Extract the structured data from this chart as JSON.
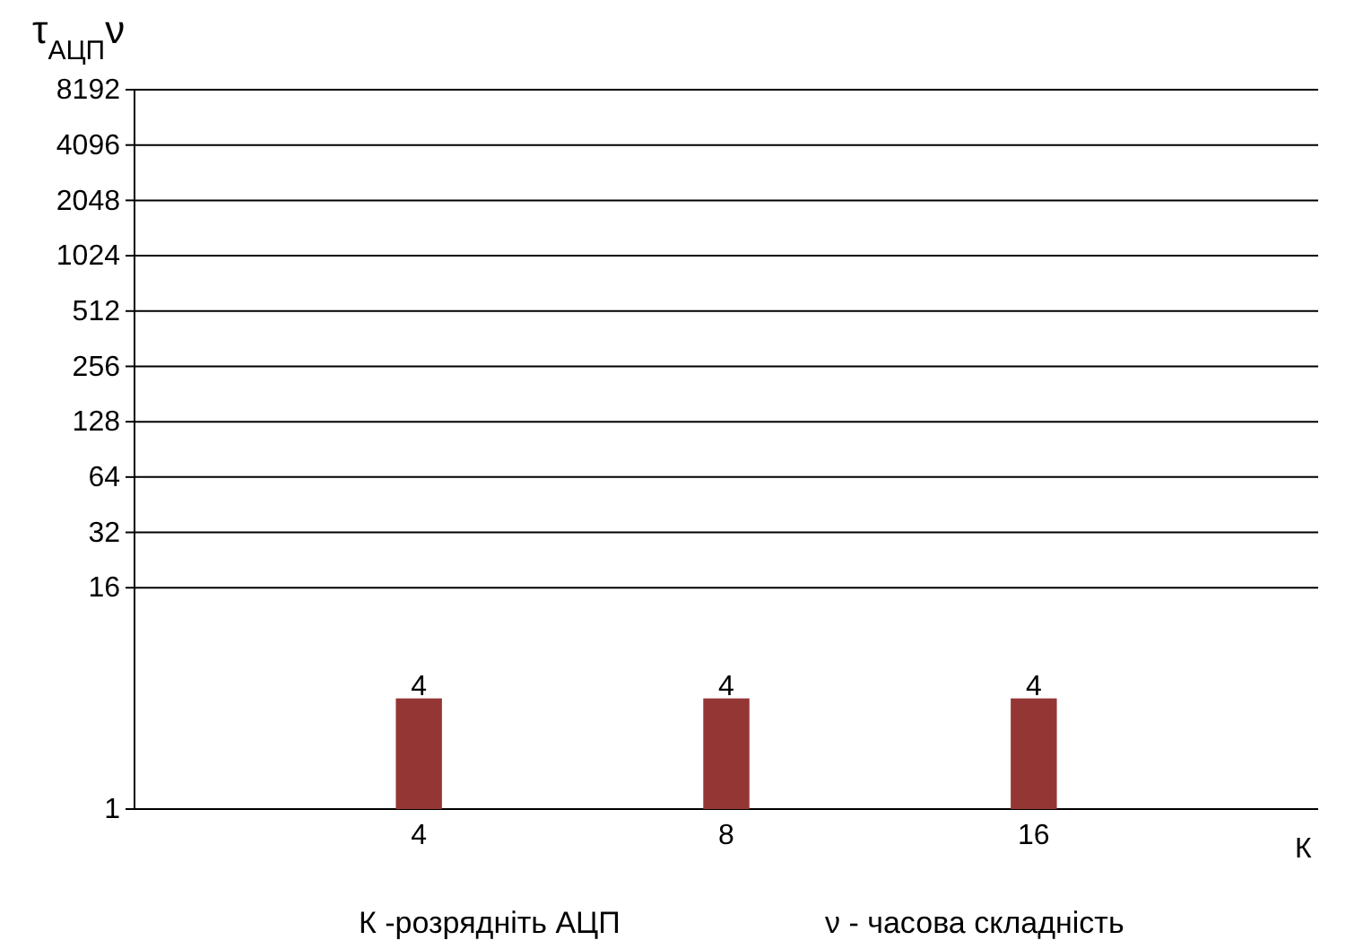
{
  "chart_data": {
    "type": "bar",
    "ylabel": "τ$_{АЦП}$ν",
    "xlabel": "К",
    "categories": [
      "4",
      "8",
      "16"
    ],
    "values": [
      4,
      4,
      4
    ],
    "color": "#943634",
    "ylim": [
      1,
      8192
    ],
    "yticks": [
      1,
      16,
      32,
      64,
      128,
      256,
      512,
      1024,
      2048,
      4096,
      8192
    ],
    "log": true,
    "grid": "y",
    "data_labels": true,
    "annotations": [
      "К -розрядніть АЦП",
      "ν - часова складність"
    ]
  }
}
